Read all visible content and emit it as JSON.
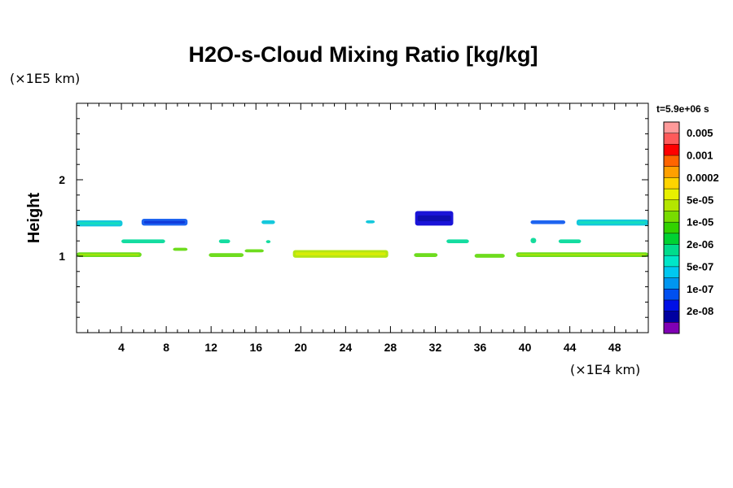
{
  "chart_data": {
    "type": "heatmap",
    "title": "H2O-s-Cloud Mixing Ratio [kg/kg]",
    "ylabel": "Height",
    "xlabel": "",
    "x_unit": "(×1E4 km)",
    "y_unit": "(×1E5 km)",
    "time_label": "t=5.9e+06 s",
    "xlim": [
      0,
      51
    ],
    "ylim": [
      0,
      3
    ],
    "x_ticks": [
      4,
      8,
      12,
      16,
      20,
      24,
      28,
      32,
      36,
      40,
      44,
      48
    ],
    "y_ticks": [
      1,
      2
    ],
    "grid": false,
    "legend": "colorbar-right",
    "colorbar": {
      "labels": [
        "0.005",
        "0.001",
        "0.0002",
        "5e-05",
        "1e-05",
        "2e-06",
        "5e-07",
        "1e-07",
        "2e-08"
      ],
      "colors_top_to_bottom": [
        "#ff9a9a",
        "#ff5a5a",
        "#ff0000",
        "#ff6400",
        "#ffa000",
        "#ffd400",
        "#e8f000",
        "#b4e600",
        "#78dc00",
        "#32d200",
        "#00d232",
        "#00dc8c",
        "#00e6c8",
        "#00c8f0",
        "#0096f0",
        "#0050f0",
        "#0010e6",
        "#0000a0",
        "#8000b4"
      ]
    },
    "cloud_bands": [
      {
        "x": [
          0.0,
          4.1
        ],
        "y": [
          1.39,
          1.47
        ],
        "level": "5e-07"
      },
      {
        "x": [
          5.8,
          9.9
        ],
        "y": [
          1.4,
          1.49
        ],
        "level": "1e-07"
      },
      {
        "x": [
          16.5,
          17.7
        ],
        "y": [
          1.42,
          1.47
        ],
        "level": "5e-07"
      },
      {
        "x": [
          25.8,
          26.6
        ],
        "y": [
          1.43,
          1.47
        ],
        "level": "5e-07"
      },
      {
        "x": [
          30.2,
          33.6
        ],
        "y": [
          1.4,
          1.59
        ],
        "level": "2e-08"
      },
      {
        "x": [
          40.5,
          43.6
        ],
        "y": [
          1.42,
          1.47
        ],
        "level": "1e-07"
      },
      {
        "x": [
          44.6,
          51.0
        ],
        "y": [
          1.4,
          1.48
        ],
        "level": "5e-07"
      },
      {
        "x": [
          4.0,
          7.9
        ],
        "y": [
          1.17,
          1.22
        ],
        "level": "2e-06"
      },
      {
        "x": [
          12.7,
          13.7
        ],
        "y": [
          1.17,
          1.22
        ],
        "level": "2e-06"
      },
      {
        "x": [
          16.9,
          17.3
        ],
        "y": [
          1.17,
          1.21
        ],
        "level": "2e-06"
      },
      {
        "x": [
          33.0,
          35.0
        ],
        "y": [
          1.17,
          1.22
        ],
        "level": "2e-06"
      },
      {
        "x": [
          40.5,
          41.0
        ],
        "y": [
          1.17,
          1.24
        ],
        "level": "2e-06"
      },
      {
        "x": [
          43.0,
          45.0
        ],
        "y": [
          1.17,
          1.22
        ],
        "level": "2e-06"
      },
      {
        "x": [
          0.0,
          5.8
        ],
        "y": [
          0.99,
          1.05
        ],
        "level": "1e-05"
      },
      {
        "x": [
          8.6,
          9.9
        ],
        "y": [
          1.07,
          1.11
        ],
        "level": "1e-05"
      },
      {
        "x": [
          11.8,
          14.9
        ],
        "y": [
          0.99,
          1.04
        ],
        "level": "1e-05"
      },
      {
        "x": [
          15.0,
          16.7
        ],
        "y": [
          1.05,
          1.09
        ],
        "level": "1e-05"
      },
      {
        "x": [
          19.3,
          27.8
        ],
        "y": [
          0.98,
          1.08
        ],
        "level": "5e-05"
      },
      {
        "x": [
          30.1,
          32.2
        ],
        "y": [
          0.99,
          1.04
        ],
        "level": "1e-05"
      },
      {
        "x": [
          35.5,
          38.2
        ],
        "y": [
          0.98,
          1.03
        ],
        "level": "1e-05"
      },
      {
        "x": [
          39.2,
          51.0
        ],
        "y": [
          0.99,
          1.05
        ],
        "level": "1e-05"
      }
    ]
  }
}
